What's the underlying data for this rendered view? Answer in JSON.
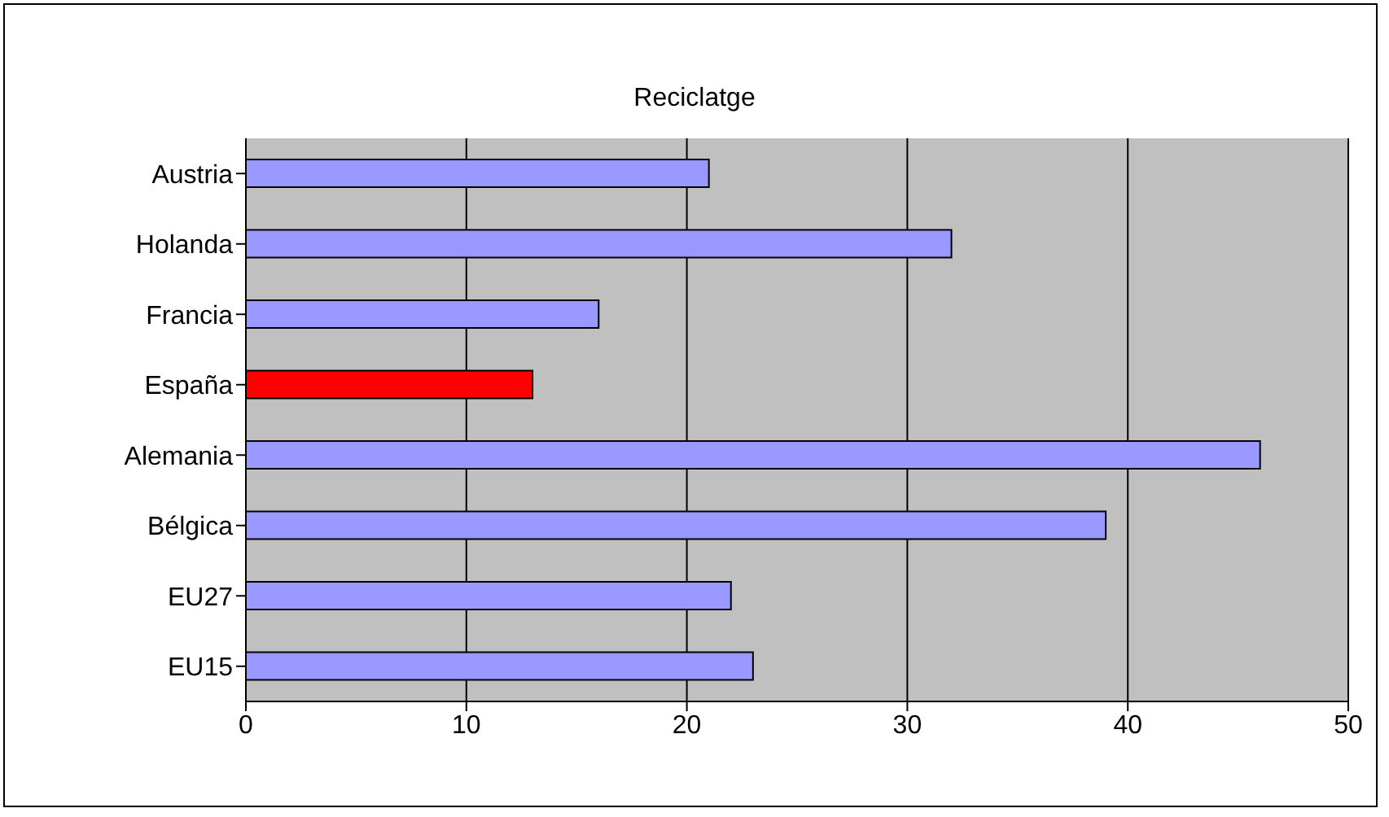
{
  "chart_data": {
    "type": "bar",
    "orientation": "horizontal",
    "title": "Reciclatge",
    "categories": [
      "Austria",
      "Holanda",
      "Francia",
      "España",
      "Alemania",
      "Bélgica",
      "EU27",
      "EU15"
    ],
    "values": [
      21,
      32,
      16,
      13,
      46,
      39,
      22,
      23
    ],
    "colors": [
      "#9999ff",
      "#9999ff",
      "#9999ff",
      "#ff0000",
      "#9999ff",
      "#9999ff",
      "#9999ff",
      "#9999ff"
    ],
    "xlim": [
      0,
      50
    ],
    "xticks": [
      0,
      10,
      20,
      30,
      40,
      50
    ],
    "grid": "x",
    "legend": false
  }
}
